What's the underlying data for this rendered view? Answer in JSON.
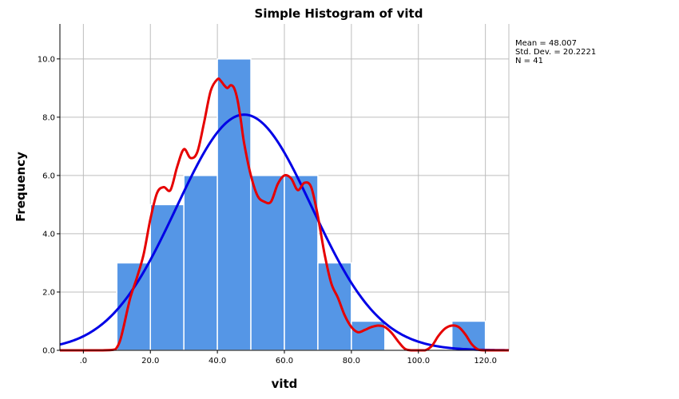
{
  "chart_data": {
    "type": "bar",
    "title": "Simple Histogram of vitd",
    "xlabel": "vitd",
    "ylabel": "Frequency",
    "xlim": [
      -7,
      127
    ],
    "ylim": [
      0,
      11.2
    ],
    "grid": true,
    "x_ticks": [
      ".0",
      "20.0",
      "40.0",
      "60.0",
      "80.0",
      "100.0",
      "120.0"
    ],
    "y_ticks": [
      "0.0",
      "2.0",
      "4.0",
      "6.0",
      "8.0",
      "10.0"
    ],
    "bins": [
      {
        "start": 10,
        "end": 20,
        "count": 3
      },
      {
        "start": 20,
        "end": 30,
        "count": 5
      },
      {
        "start": 30,
        "end": 40,
        "count": 6
      },
      {
        "start": 40,
        "end": 50,
        "count": 10
      },
      {
        "start": 50,
        "end": 60,
        "count": 6
      },
      {
        "start": 60,
        "end": 70,
        "count": 6
      },
      {
        "start": 70,
        "end": 80,
        "count": 3
      },
      {
        "start": 80,
        "end": 90,
        "count": 1
      },
      {
        "start": 90,
        "end": 100,
        "count": 0
      },
      {
        "start": 100,
        "end": 110,
        "count": 0
      },
      {
        "start": 110,
        "end": 120,
        "count": 1
      }
    ],
    "normal_curve": {
      "mean": 48.007,
      "sd": 20.2221,
      "n": 41,
      "bin_width": 10,
      "color": "#0000e6"
    },
    "density_curve": {
      "color": "#e60000",
      "x": [
        -7,
        0,
        5,
        9,
        10,
        11,
        12,
        14,
        16,
        18,
        20,
        22,
        24,
        26,
        28,
        30,
        32,
        34,
        36,
        38,
        40,
        41,
        42,
        43,
        44,
        45,
        46,
        47,
        48,
        50,
        52,
        54,
        56,
        58,
        60,
        62,
        64,
        66,
        68,
        70,
        72,
        74,
        76,
        78,
        80,
        82,
        84,
        86,
        88,
        90,
        92,
        94,
        96,
        98,
        100,
        102,
        104,
        106,
        108,
        110,
        112,
        114,
        116,
        118,
        120,
        122,
        127
      ],
      "y": [
        0,
        0,
        0,
        0.02,
        0.1,
        0.35,
        0.8,
        1.8,
        2.5,
        3.3,
        4.5,
        5.4,
        5.6,
        5.5,
        6.3,
        6.9,
        6.6,
        6.8,
        7.8,
        8.9,
        9.3,
        9.25,
        9.1,
        9.0,
        9.1,
        9.0,
        8.6,
        7.9,
        7.1,
        6.0,
        5.3,
        5.1,
        5.1,
        5.7,
        6.0,
        5.9,
        5.5,
        5.75,
        5.6,
        4.6,
        3.3,
        2.3,
        1.8,
        1.2,
        0.8,
        0.62,
        0.7,
        0.8,
        0.85,
        0.8,
        0.6,
        0.3,
        0.05,
        0,
        0,
        0,
        0.15,
        0.5,
        0.75,
        0.85,
        0.8,
        0.55,
        0.2,
        0.02,
        0,
        0,
        0
      ]
    },
    "stats_box": [
      "Mean = 48.007",
      "Std. Dev. = 20.2221",
      "N = 41"
    ]
  }
}
